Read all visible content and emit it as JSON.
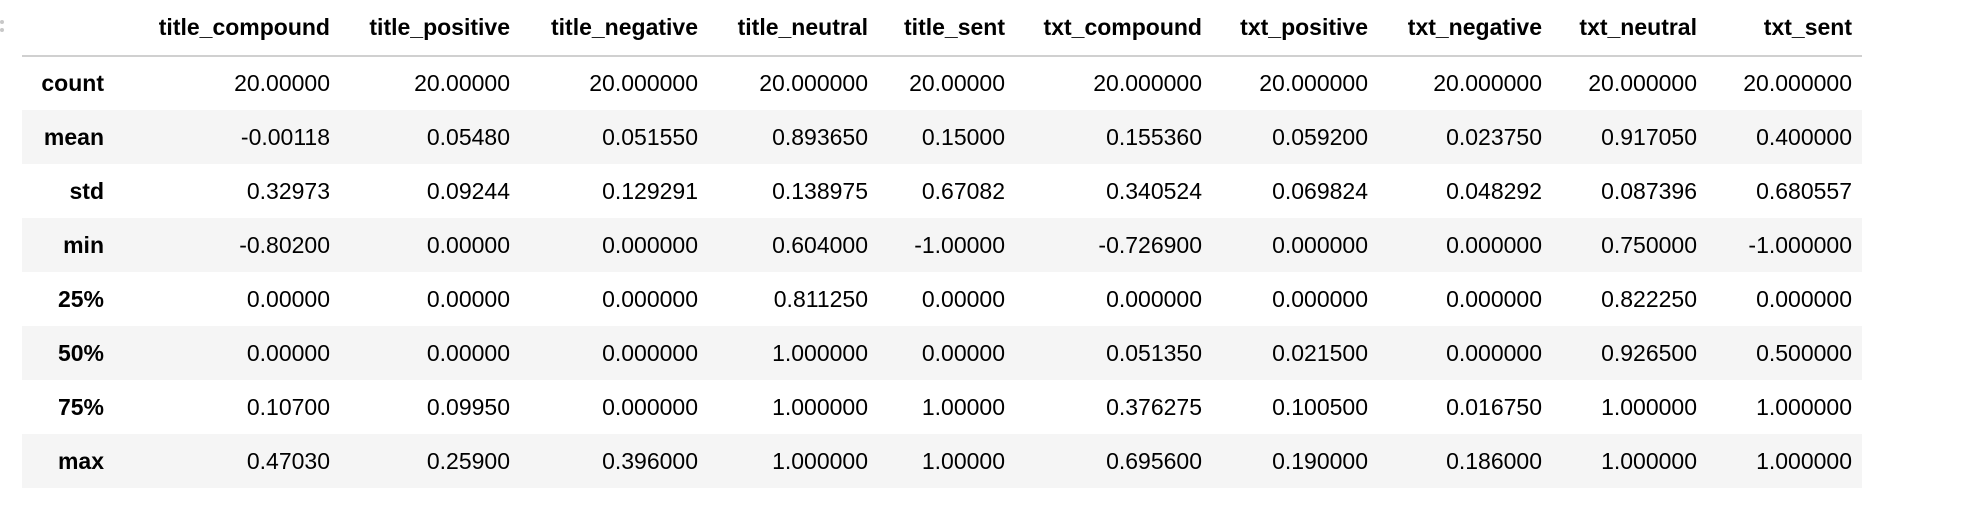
{
  "table": {
    "columns": [
      "title_compound",
      "title_positive",
      "title_negative",
      "title_neutral",
      "title_sent",
      "txt_compound",
      "txt_positive",
      "txt_negative",
      "txt_neutral",
      "txt_sent"
    ],
    "rows": [
      {
        "index": "count",
        "values": [
          "20.00000",
          "20.00000",
          "20.000000",
          "20.000000",
          "20.00000",
          "20.000000",
          "20.000000",
          "20.000000",
          "20.000000",
          "20.000000"
        ]
      },
      {
        "index": "mean",
        "values": [
          "-0.00118",
          "0.05480",
          "0.051550",
          "0.893650",
          "0.15000",
          "0.155360",
          "0.059200",
          "0.023750",
          "0.917050",
          "0.400000"
        ]
      },
      {
        "index": "std",
        "values": [
          "0.32973",
          "0.09244",
          "0.129291",
          "0.138975",
          "0.67082",
          "0.340524",
          "0.069824",
          "0.048292",
          "0.087396",
          "0.680557"
        ]
      },
      {
        "index": "min",
        "values": [
          "-0.80200",
          "0.00000",
          "0.000000",
          "0.604000",
          "-1.00000",
          "-0.726900",
          "0.000000",
          "0.000000",
          "0.750000",
          "-1.000000"
        ]
      },
      {
        "index": "25%",
        "values": [
          "0.00000",
          "0.00000",
          "0.000000",
          "0.811250",
          "0.00000",
          "0.000000",
          "0.000000",
          "0.000000",
          "0.822250",
          "0.000000"
        ]
      },
      {
        "index": "50%",
        "values": [
          "0.00000",
          "0.00000",
          "0.000000",
          "1.000000",
          "0.00000",
          "0.051350",
          "0.021500",
          "0.000000",
          "0.926500",
          "0.500000"
        ]
      },
      {
        "index": "75%",
        "values": [
          "0.10700",
          "0.09950",
          "0.000000",
          "1.000000",
          "1.00000",
          "0.376275",
          "0.100500",
          "0.016750",
          "1.000000",
          "1.000000"
        ]
      },
      {
        "index": "max",
        "values": [
          "0.47030",
          "0.25900",
          "0.396000",
          "1.000000",
          "1.00000",
          "0.695600",
          "0.190000",
          "0.186000",
          "1.000000",
          "1.000000"
        ]
      }
    ]
  }
}
